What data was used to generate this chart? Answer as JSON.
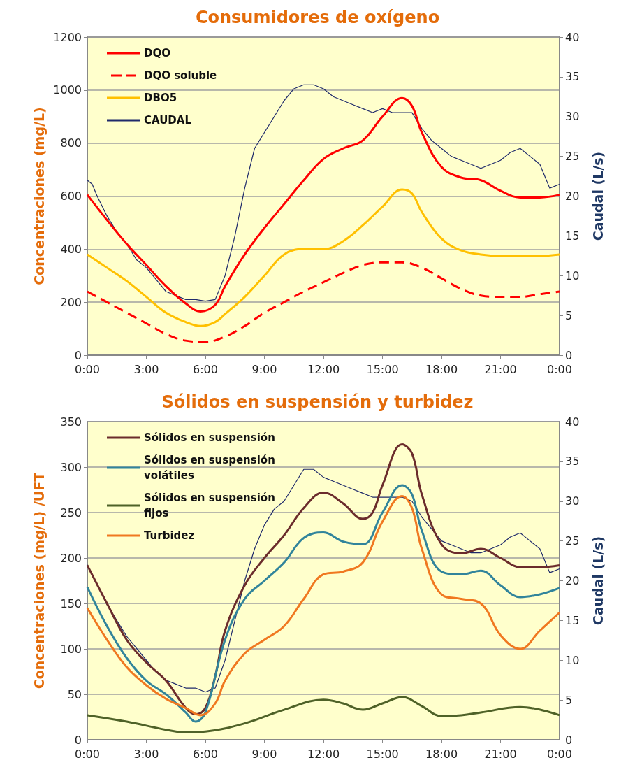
{
  "chart_data": [
    {
      "type": "line",
      "title": "Consumidores de oxígeno",
      "ylabel": "Concentraciones (mg/L)",
      "y2label": "Caudal (L/s)",
      "xlim": [
        0,
        24
      ],
      "xticks": [
        {
          "value": 0,
          "label": "0:00"
        },
        {
          "value": 3,
          "label": "3:00"
        },
        {
          "value": 6,
          "label": "6:00"
        },
        {
          "value": 9,
          "label": "9:00"
        },
        {
          "value": 12,
          "label": "12:00"
        },
        {
          "value": 15,
          "label": "15:00"
        },
        {
          "value": 18,
          "label": "18:00"
        },
        {
          "value": 21,
          "label": "21:00"
        },
        {
          "value": 24,
          "label": "0:00"
        }
      ],
      "ylim": [
        0,
        1200
      ],
      "yticks": [
        0,
        200,
        400,
        600,
        800,
        1000,
        1200
      ],
      "y2lim": [
        0,
        40
      ],
      "y2ticks": [
        0,
        5,
        10,
        15,
        20,
        25,
        30,
        35,
        40
      ],
      "grid": "y",
      "legend": "top left",
      "marker": "none",
      "series": [
        {
          "name": "DQO",
          "color": "#ff0000",
          "line_style": "solid",
          "x": [
            0,
            1,
            2,
            3,
            4,
            5,
            5.75,
            6.5,
            7,
            8,
            9,
            10,
            11,
            12,
            13,
            14,
            15,
            16,
            16.5,
            17,
            18,
            19,
            20,
            21,
            22,
            23,
            24
          ],
          "values": [
            605,
            510,
            420,
            340,
            260,
            195,
            165,
            190,
            260,
            380,
            480,
            570,
            660,
            740,
            780,
            810,
            900,
            970,
            940,
            840,
            710,
            670,
            660,
            620,
            595,
            595,
            605
          ]
        },
        {
          "name": "DQO soluble",
          "color": "#ff0000",
          "line_style": "dashed",
          "x": [
            0,
            1,
            2,
            3,
            4,
            5,
            6,
            7,
            8,
            9,
            10,
            11,
            12,
            13,
            14,
            15,
            16,
            17,
            18,
            19,
            20,
            21,
            22,
            23,
            24
          ],
          "values": [
            240,
            200,
            160,
            120,
            80,
            55,
            50,
            70,
            110,
            160,
            200,
            240,
            275,
            310,
            340,
            350,
            350,
            330,
            290,
            250,
            225,
            220,
            220,
            230,
            240
          ]
        },
        {
          "name": "DBO5",
          "color": "#ffc000",
          "line_style": "solid",
          "x": [
            0,
            1,
            2,
            3,
            4,
            5,
            5.75,
            6.5,
            7,
            8,
            9,
            10,
            11,
            12,
            13,
            14,
            15,
            16,
            16.5,
            17,
            18,
            19,
            20,
            21,
            22,
            23,
            24
          ],
          "values": [
            380,
            330,
            280,
            220,
            160,
            125,
            110,
            125,
            155,
            220,
            300,
            380,
            400,
            400,
            430,
            490,
            560,
            625,
            610,
            540,
            440,
            395,
            380,
            375,
            375,
            375,
            380
          ]
        },
        {
          "name": "CAUDAL",
          "color": "#1f2a6b",
          "line_style": "solid",
          "axis": "y2",
          "x": [
            0,
            0.25,
            0.5,
            1,
            1.5,
            2,
            2.5,
            3,
            3.5,
            4,
            4.5,
            5,
            5.5,
            6,
            6.5,
            7,
            7.5,
            8,
            8.5,
            9,
            9.5,
            10,
            10.5,
            11,
            11.5,
            12,
            12.5,
            13,
            13.5,
            14,
            14.5,
            15,
            15.5,
            16,
            16.5,
            17,
            17.5,
            18,
            18.5,
            19,
            19.5,
            20,
            20.5,
            21,
            21.5,
            22,
            22.5,
            23,
            23.5,
            24
          ],
          "values": [
            22,
            21.5,
            20,
            17.5,
            15.5,
            14,
            12,
            11,
            9.5,
            8,
            7.5,
            7,
            7,
            6.8,
            7,
            10,
            15,
            21,
            26,
            28,
            30,
            32,
            33.5,
            34,
            34,
            33.5,
            32.5,
            32,
            31.5,
            31,
            30.5,
            31,
            30.5,
            30.5,
            30.5,
            28.5,
            27,
            26,
            25,
            24.5,
            24,
            23.5,
            24,
            24.5,
            25.5,
            26,
            25,
            24,
            21,
            21.5
          ]
        }
      ]
    },
    {
      "type": "line",
      "title": "Sólidos en suspensión y turbidez",
      "ylabel": "Concentraciones (mg/L) /UFT",
      "y2label": "Caudal (L/s)",
      "xlim": [
        0,
        24
      ],
      "xticks": [
        {
          "value": 0,
          "label": "0:00"
        },
        {
          "value": 3,
          "label": "3:00"
        },
        {
          "value": 6,
          "label": "6:00"
        },
        {
          "value": 9,
          "label": "9:00"
        },
        {
          "value": 12,
          "label": "12:00"
        },
        {
          "value": 15,
          "label": "15:00"
        },
        {
          "value": 18,
          "label": "18:00"
        },
        {
          "value": 21,
          "label": "21:00"
        },
        {
          "value": 24,
          "label": "0:00"
        }
      ],
      "ylim": [
        0,
        350
      ],
      "yticks": [
        0,
        50,
        100,
        150,
        200,
        250,
        300,
        350
      ],
      "y2lim": [
        0,
        40
      ],
      "y2ticks": [
        0,
        5,
        10,
        15,
        20,
        25,
        30,
        35,
        40
      ],
      "grid": "y",
      "legend": "top left",
      "marker": "none",
      "series": [
        {
          "name": "Sólidos en suspensión",
          "color": "#6b2c2c",
          "line_style": "solid",
          "x": [
            0,
            1,
            2,
            3,
            4,
            5,
            5.5,
            6,
            6.5,
            7,
            8,
            9,
            10,
            11,
            12,
            13,
            14,
            14.5,
            15,
            16,
            16.5,
            17,
            18,
            19,
            20,
            21,
            22,
            23,
            24
          ],
          "values": [
            192,
            150,
            110,
            85,
            65,
            35,
            28,
            35,
            70,
            120,
            170,
            200,
            225,
            255,
            272,
            260,
            243,
            250,
            280,
            325,
            315,
            270,
            215,
            205,
            210,
            200,
            190,
            190,
            192
          ]
        },
        {
          "name": "Sólidos en suspensión volátiles",
          "color": "#31849b",
          "line_style": "solid",
          "x": [
            0,
            1,
            2,
            3,
            4,
            5,
            5.5,
            6,
            7,
            8,
            9,
            10,
            11,
            12,
            13,
            14,
            15,
            16,
            16.5,
            17,
            18,
            19,
            20,
            21,
            22,
            23,
            24
          ],
          "values": [
            168,
            125,
            90,
            65,
            50,
            30,
            20,
            30,
            110,
            155,
            175,
            195,
            222,
            228,
            218,
            215,
            250,
            280,
            270,
            230,
            185,
            182,
            186,
            170,
            157,
            160,
            167
          ]
        },
        {
          "name": "Sólidos en suspensión fijos",
          "color": "#4f6228",
          "line_style": "solid",
          "x": [
            0,
            2,
            4,
            5,
            6,
            8,
            10,
            12,
            13,
            14,
            15,
            16,
            17,
            18,
            19,
            20,
            22,
            24
          ],
          "values": [
            27,
            20,
            11,
            8,
            9,
            18,
            33,
            44,
            40,
            33,
            40,
            47,
            37,
            26,
            27,
            30,
            36,
            27
          ]
        },
        {
          "name": "Turbidez",
          "color": "#f07820",
          "line_style": "solid",
          "x": [
            0,
            1,
            2,
            3,
            4,
            5,
            5.75,
            6.5,
            7,
            8,
            9,
            10,
            11,
            12,
            13,
            14,
            15,
            16,
            16.5,
            17,
            18,
            19,
            20,
            21,
            22,
            23,
            24
          ],
          "values": [
            145,
            110,
            80,
            60,
            45,
            35,
            27,
            40,
            65,
            95,
            110,
            125,
            155,
            182,
            185,
            195,
            240,
            268,
            255,
            210,
            160,
            155,
            150,
            115,
            100,
            120,
            140
          ]
        },
        {
          "color": "#1f2a6b",
          "line_style": "solid",
          "axis": "y2",
          "x": [
            0,
            0.5,
            1,
            1.5,
            2,
            2.5,
            3,
            3.5,
            4,
            4.5,
            5,
            5.5,
            6,
            6.5,
            7,
            7.5,
            8,
            8.5,
            9,
            9.5,
            10,
            10.5,
            11,
            11.5,
            12,
            12.5,
            13,
            13.5,
            14,
            14.5,
            15,
            15.5,
            16,
            16.5,
            17,
            17.5,
            18,
            18.5,
            19,
            19.5,
            20,
            20.5,
            21,
            21.5,
            22,
            22.5,
            23,
            23.5,
            24
          ],
          "values": [
            22,
            19.5,
            17,
            15,
            13,
            11.5,
            10,
            8.5,
            7.5,
            7,
            6.5,
            6.5,
            6,
            6.5,
            10,
            15,
            20,
            24,
            27,
            29,
            30,
            32,
            34,
            34,
            33,
            32.5,
            32,
            31.5,
            31,
            30.5,
            30.5,
            30.5,
            30.5,
            30,
            28,
            26.5,
            25,
            24.5,
            24,
            23.5,
            23.5,
            24,
            24.5,
            25.5,
            26,
            25,
            24,
            21,
            21.5
          ]
        }
      ]
    }
  ]
}
